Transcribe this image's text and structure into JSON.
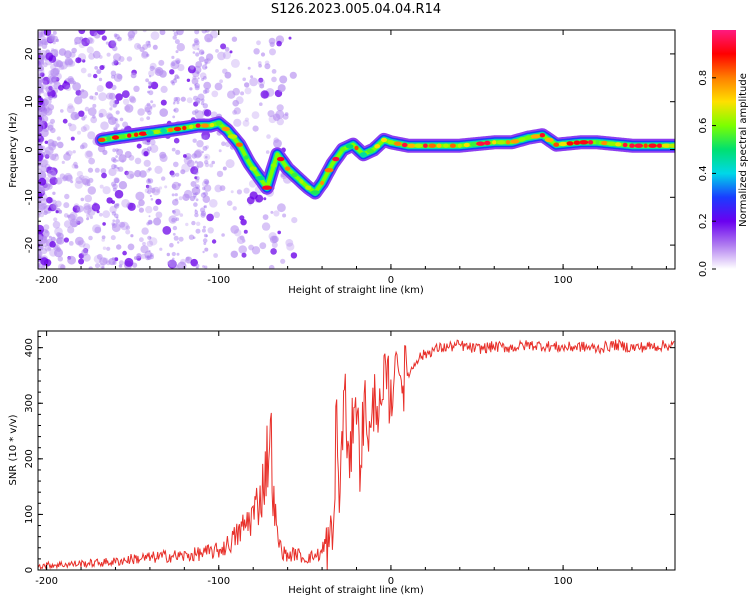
{
  "title": "S126.2023.005.04.04.R14",
  "colors": {
    "snr_line": "#e8302a",
    "axis": "#000000"
  },
  "colorbar": {
    "label": "Normalized spectral amplitude",
    "ticks": [
      "0.0",
      "0.2",
      "0.4",
      "0.6",
      "0.8"
    ],
    "range": [
      0,
      1
    ],
    "colormap": [
      "#ffffff",
      "#b07cf0",
      "#6a00f0",
      "#1a3cff",
      "#00d8e8",
      "#00e070",
      "#7cff00",
      "#ffe000",
      "#ff8000",
      "#ff0000",
      "#ff1a80"
    ]
  },
  "chart_data": [
    {
      "type": "heatmap",
      "title": "S126.2023.005.04.04.R14",
      "xlabel": "Height of straight line (km)",
      "ylabel": "Frequency (Hz)",
      "xlim": [
        -205,
        165
      ],
      "ylim": [
        -25,
        25
      ],
      "xticks": [
        "-200",
        "-100",
        "0",
        "100"
      ],
      "yticks": [
        "20",
        "10",
        "0",
        "-10",
        "-20"
      ],
      "ridge": {
        "x": [
          -168,
          -160,
          -150,
          -140,
          -130,
          -120,
          -112,
          -105,
          -100,
          -95,
          -88,
          -82,
          -76,
          -72,
          -66,
          -60,
          -54,
          -48,
          -44,
          -40,
          -34,
          -28,
          -22,
          -16,
          -10,
          -4,
          0,
          10,
          20,
          40,
          60,
          70,
          80,
          88,
          96,
          110,
          120,
          140,
          165
        ],
        "y": [
          2,
          2.5,
          3,
          3.5,
          4,
          4.5,
          5,
          5,
          5.5,
          4,
          1,
          -3,
          -6,
          -8,
          -1,
          -4,
          -6,
          -8,
          -9,
          -7,
          -3,
          0,
          1,
          -1,
          0,
          2,
          1.5,
          0.8,
          0.8,
          0.8,
          1.5,
          1.5,
          2.5,
          3,
          1,
          1.5,
          1.5,
          0.8,
          0.8
        ]
      }
    },
    {
      "type": "line",
      "xlabel": "Height of straight line (km)",
      "ylabel": "SNR (10 * v/v)",
      "xlim": [
        -205,
        165
      ],
      "ylim": [
        0,
        430
      ],
      "xticks": [
        "-200",
        "-100",
        "0",
        "100"
      ],
      "yticks": [
        "0",
        "100",
        "200",
        "300",
        "400"
      ],
      "series": [
        {
          "x": [
            -205,
            -190,
            -175,
            -160,
            -150,
            -140,
            -130,
            -120,
            -110,
            -100,
            -95,
            -90,
            -85,
            -80,
            -75,
            -72,
            -70,
            -68,
            -66,
            -64,
            -62,
            -60,
            -55,
            -50,
            -45,
            -40,
            -36,
            -33,
            -32,
            -30,
            -27,
            -24,
            -21,
            -18,
            -15,
            -12,
            -9,
            -6,
            -3,
            0,
            3,
            6,
            9,
            12,
            15,
            18,
            21,
            24,
            27,
            30,
            35,
            40,
            45,
            50,
            60,
            70,
            80,
            90,
            100,
            110,
            120,
            130,
            140,
            150,
            165
          ],
          "y": [
            8,
            10,
            12,
            15,
            20,
            22,
            25,
            25,
            30,
            35,
            45,
            60,
            80,
            100,
            140,
            200,
            250,
            120,
            60,
            40,
            30,
            25,
            30,
            20,
            25,
            30,
            40,
            70,
            300,
            120,
            330,
            160,
            340,
            200,
            300,
            230,
            330,
            260,
            360,
            300,
            390,
            340,
            350,
            360,
            380,
            385,
            390,
            395,
            398,
            400,
            402,
            405,
            400,
            398,
            402,
            400,
            405,
            403,
            400,
            402,
            398,
            405,
            400,
            402,
            405
          ]
        }
      ]
    }
  ]
}
